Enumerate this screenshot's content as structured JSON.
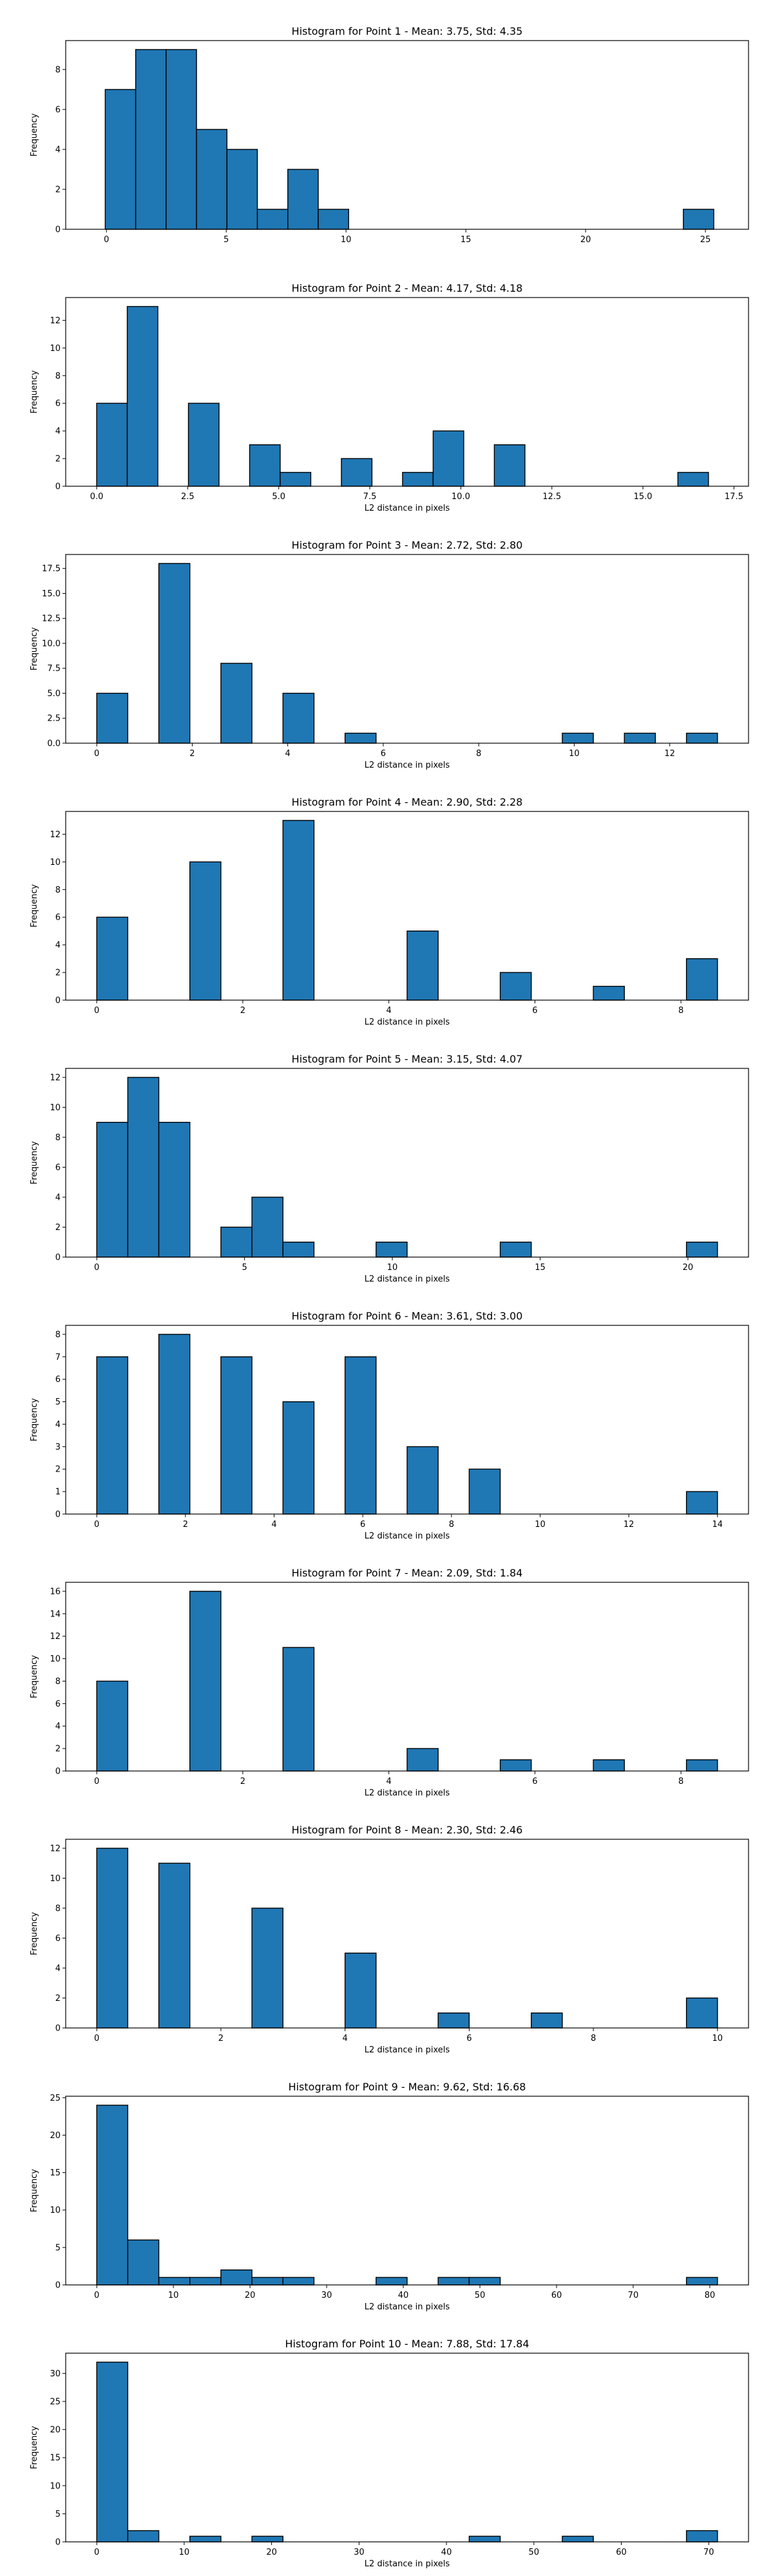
{
  "chart_data": [
    {
      "type": "bar",
      "title": "Histogram for Point 1 - Mean: 3.75, Std: 4.35",
      "xlabel": "",
      "ylabel": "Frequency",
      "xlim": [
        -1.7,
        26.8
      ],
      "ylim": [
        0,
        9.45
      ],
      "xticks": [
        0,
        5,
        10,
        15,
        20,
        25
      ],
      "xtick_labels": [
        "0",
        "5",
        "10",
        "15",
        "20",
        "25"
      ],
      "yticks": [
        0,
        2,
        4,
        6,
        8
      ],
      "ytick_labels": [
        "0",
        "2",
        "4",
        "6",
        "8"
      ],
      "bin_edges": [
        -0.05,
        1.22,
        2.49,
        3.76,
        5.03,
        6.3,
        7.57,
        8.84,
        10.11,
        11.38,
        12.65,
        13.92,
        15.19,
        16.46,
        17.73,
        19.0,
        20.27,
        21.54,
        22.81,
        24.08,
        25.35
      ],
      "counts": [
        7,
        9,
        9,
        5,
        4,
        1,
        3,
        1,
        0,
        0,
        0,
        0,
        0,
        0,
        0,
        0,
        0,
        0,
        0,
        1
      ],
      "grid": false
    },
    {
      "type": "bar",
      "title": "Histogram for Point 2 - Mean: 4.17, Std: 4.18",
      "xlabel": "L2 distance in pixels",
      "ylabel": "Frequency",
      "xlim": [
        -0.85,
        17.9
      ],
      "ylim": [
        0,
        13.65
      ],
      "xticks": [
        0,
        2.5,
        5,
        7.5,
        10,
        12.5,
        15,
        17.5
      ],
      "xtick_labels": [
        "0.0",
        "2.5",
        "5.0",
        "7.5",
        "10.0",
        "12.5",
        "15.0",
        "17.5"
      ],
      "yticks": [
        0,
        2,
        4,
        6,
        8,
        10,
        12
      ],
      "ytick_labels": [
        "0",
        "2",
        "4",
        "6",
        "8",
        "10",
        "12"
      ],
      "bin_edges": [
        0.0,
        0.84,
        1.68,
        2.52,
        3.36,
        4.2,
        5.04,
        5.88,
        6.72,
        7.56,
        8.4,
        9.24,
        10.08,
        10.92,
        11.76,
        12.6,
        13.44,
        14.28,
        15.12,
        15.96,
        16.8
      ],
      "counts": [
        6,
        13,
        0,
        6,
        0,
        3,
        1,
        0,
        2,
        0,
        1,
        4,
        0,
        3,
        0,
        0,
        0,
        0,
        0,
        1
      ],
      "grid": false
    },
    {
      "type": "bar",
      "title": "Histogram for Point 3 - Mean: 2.72, Std: 2.80",
      "xlabel": "L2 distance in pixels",
      "ylabel": "Frequency",
      "xlim": [
        -0.65,
        13.65
      ],
      "ylim": [
        0,
        18.9
      ],
      "xticks": [
        0,
        2,
        4,
        6,
        8,
        10,
        12
      ],
      "xtick_labels": [
        "0",
        "2",
        "4",
        "6",
        "8",
        "10",
        "12"
      ],
      "yticks": [
        0,
        2.5,
        5,
        7.5,
        10,
        12.5,
        15,
        17.5
      ],
      "ytick_labels": [
        "0.0",
        "2.5",
        "5.0",
        "7.5",
        "10.0",
        "12.5",
        "15.0",
        "17.5"
      ],
      "bin_edges": [
        0.0,
        0.65,
        1.3,
        1.95,
        2.6,
        3.25,
        3.9,
        4.55,
        5.2,
        5.85,
        6.5,
        7.15,
        7.8,
        8.45,
        9.1,
        9.75,
        10.4,
        11.05,
        11.7,
        12.35,
        13.0
      ],
      "counts": [
        5,
        0,
        18,
        0,
        8,
        0,
        5,
        0,
        1,
        0,
        0,
        0,
        0,
        0,
        0,
        1,
        0,
        1,
        0,
        1
      ],
      "grid": false
    },
    {
      "type": "bar",
      "title": "Histogram for Point 4 - Mean: 2.90, Std: 2.28",
      "xlabel": "L2 distance in pixels",
      "ylabel": "Frequency",
      "xlim": [
        -0.425,
        8.925
      ],
      "ylim": [
        0,
        13.65
      ],
      "xticks": [
        0,
        2,
        4,
        6,
        8
      ],
      "xtick_labels": [
        "0",
        "2",
        "4",
        "6",
        "8"
      ],
      "yticks": [
        0,
        2,
        4,
        6,
        8,
        10,
        12
      ],
      "ytick_labels": [
        "0",
        "2",
        "4",
        "6",
        "8",
        "10",
        "12"
      ],
      "bin_edges": [
        0.0,
        0.425,
        0.85,
        1.275,
        1.7,
        2.125,
        2.55,
        2.975,
        3.4,
        3.825,
        4.25,
        4.675,
        5.1,
        5.525,
        5.95,
        6.375,
        6.8,
        7.225,
        7.65,
        8.075,
        8.5
      ],
      "counts": [
        6,
        0,
        0,
        10,
        0,
        0,
        13,
        0,
        0,
        0,
        5,
        0,
        0,
        2,
        0,
        0,
        1,
        0,
        0,
        3
      ],
      "grid": false
    },
    {
      "type": "bar",
      "title": "Histogram for Point 5 - Mean: 3.15, Std: 4.07",
      "xlabel": "L2 distance in pixels",
      "ylabel": "Frequency",
      "xlim": [
        -1.05,
        22.05
      ],
      "ylim": [
        0,
        12.6
      ],
      "xticks": [
        0,
        5,
        10,
        15,
        20
      ],
      "xtick_labels": [
        "0",
        "5",
        "10",
        "15",
        "20"
      ],
      "yticks": [
        0,
        2,
        4,
        6,
        8,
        10,
        12
      ],
      "ytick_labels": [
        "0",
        "2",
        "4",
        "6",
        "8",
        "10",
        "12"
      ],
      "bin_edges": [
        0.0,
        1.05,
        2.1,
        3.15,
        4.2,
        5.25,
        6.3,
        7.35,
        8.4,
        9.45,
        10.5,
        11.55,
        12.6,
        13.65,
        14.7,
        15.75,
        16.8,
        17.85,
        18.9,
        19.95,
        21.0
      ],
      "counts": [
        9,
        12,
        9,
        0,
        2,
        4,
        1,
        0,
        0,
        1,
        0,
        0,
        0,
        1,
        0,
        0,
        0,
        0,
        0,
        1
      ],
      "grid": false
    },
    {
      "type": "bar",
      "title": "Histogram for Point 6 - Mean: 3.61, Std: 3.00",
      "xlabel": "L2 distance in pixels",
      "ylabel": "Frequency",
      "xlim": [
        -0.7,
        14.7
      ],
      "ylim": [
        0,
        8.4
      ],
      "xticks": [
        0,
        2,
        4,
        6,
        8,
        10,
        12,
        14
      ],
      "xtick_labels": [
        "0",
        "2",
        "4",
        "6",
        "8",
        "10",
        "12",
        "14"
      ],
      "yticks": [
        0,
        1,
        2,
        3,
        4,
        5,
        6,
        7,
        8
      ],
      "ytick_labels": [
        "0",
        "1",
        "2",
        "3",
        "4",
        "5",
        "6",
        "7",
        "8"
      ],
      "bin_edges": [
        0.0,
        0.7,
        1.4,
        2.1,
        2.8,
        3.5,
        4.2,
        4.9,
        5.6,
        6.3,
        7.0,
        7.7,
        8.4,
        9.1,
        9.8,
        10.5,
        11.2,
        11.9,
        12.6,
        13.3,
        14.0
      ],
      "counts": [
        7,
        0,
        8,
        0,
        7,
        0,
        5,
        0,
        7,
        0,
        3,
        0,
        2,
        0,
        0,
        0,
        0,
        0,
        0,
        1
      ],
      "grid": false
    },
    {
      "type": "bar",
      "title": "Histogram for Point 7 - Mean: 2.09, Std: 1.84",
      "xlabel": "L2 distance in pixels",
      "ylabel": "Frequency",
      "xlim": [
        -0.425,
        8.925
      ],
      "ylim": [
        0,
        16.8
      ],
      "xticks": [
        0,
        2,
        4,
        6,
        8
      ],
      "xtick_labels": [
        "0",
        "2",
        "4",
        "6",
        "8"
      ],
      "yticks": [
        0,
        2,
        4,
        6,
        8,
        10,
        12,
        14,
        16
      ],
      "ytick_labels": [
        "0",
        "2",
        "4",
        "6",
        "8",
        "10",
        "12",
        "14",
        "16"
      ],
      "bin_edges": [
        0.0,
        0.425,
        0.85,
        1.275,
        1.7,
        2.125,
        2.55,
        2.975,
        3.4,
        3.825,
        4.25,
        4.675,
        5.1,
        5.525,
        5.95,
        6.375,
        6.8,
        7.225,
        7.65,
        8.075,
        8.5
      ],
      "counts": [
        8,
        0,
        0,
        16,
        0,
        0,
        11,
        0,
        0,
        0,
        2,
        0,
        0,
        1,
        0,
        0,
        1,
        0,
        0,
        1
      ],
      "grid": false
    },
    {
      "type": "bar",
      "title": "Histogram for Point 8 - Mean: 2.30, Std: 2.46",
      "xlabel": "L2 distance in pixels",
      "ylabel": "Frequency",
      "xlim": [
        -0.5,
        10.5
      ],
      "ylim": [
        0,
        12.6
      ],
      "xticks": [
        0,
        2,
        4,
        6,
        8,
        10
      ],
      "xtick_labels": [
        "0",
        "2",
        "4",
        "6",
        "8",
        "10"
      ],
      "yticks": [
        0,
        2,
        4,
        6,
        8,
        10,
        12
      ],
      "ytick_labels": [
        "0",
        "2",
        "4",
        "6",
        "8",
        "10",
        "12"
      ],
      "bin_edges": [
        0.0,
        0.5,
        1.0,
        1.5,
        2.0,
        2.5,
        3.0,
        3.5,
        4.0,
        4.5,
        5.0,
        5.5,
        6.0,
        6.5,
        7.0,
        7.5,
        8.0,
        8.5,
        9.0,
        9.5,
        10.0
      ],
      "counts": [
        12,
        0,
        11,
        0,
        0,
        8,
        0,
        0,
        5,
        0,
        0,
        1,
        0,
        0,
        1,
        0,
        0,
        0,
        0,
        2
      ],
      "grid": false
    },
    {
      "type": "bar",
      "title": "Histogram for Point 9 - Mean: 9.62, Std: 16.68",
      "xlabel": "L2 distance in pixels",
      "ylabel": "Frequency",
      "xlim": [
        -4.05,
        85.05
      ],
      "ylim": [
        0,
        25.2
      ],
      "xticks": [
        0,
        10,
        20,
        30,
        40,
        50,
        60,
        70,
        80
      ],
      "xtick_labels": [
        "0",
        "10",
        "20",
        "30",
        "40",
        "50",
        "60",
        "70",
        "80"
      ],
      "yticks": [
        0,
        5,
        10,
        15,
        20,
        25
      ],
      "ytick_labels": [
        "0",
        "5",
        "10",
        "15",
        "20",
        "25"
      ],
      "bin_edges": [
        0.0,
        4.05,
        8.1,
        12.15,
        16.2,
        20.25,
        24.3,
        28.35,
        32.4,
        36.45,
        40.5,
        44.55,
        48.6,
        52.65,
        56.7,
        60.75,
        64.8,
        68.85,
        72.9,
        76.95,
        81.0
      ],
      "counts": [
        24,
        6,
        1,
        1,
        2,
        1,
        1,
        0,
        0,
        1,
        0,
        1,
        1,
        0,
        0,
        0,
        0,
        0,
        0,
        1
      ],
      "grid": false
    },
    {
      "type": "bar",
      "title": "Histogram for Point 10 - Mean: 7.88, Std: 17.84",
      "xlabel": "L2 distance in pixels",
      "ylabel": "Frequency",
      "xlim": [
        -3.55,
        74.55
      ],
      "ylim": [
        0,
        33.6
      ],
      "xticks": [
        0,
        10,
        20,
        30,
        40,
        50,
        60,
        70
      ],
      "xtick_labels": [
        "0",
        "10",
        "20",
        "30",
        "40",
        "50",
        "60",
        "70"
      ],
      "yticks": [
        0,
        5,
        10,
        15,
        20,
        25,
        30
      ],
      "ytick_labels": [
        "0",
        "5",
        "10",
        "15",
        "20",
        "25",
        "30"
      ],
      "bin_edges": [
        0.0,
        3.55,
        7.1,
        10.65,
        14.2,
        17.75,
        21.3,
        24.85,
        28.4,
        31.95,
        35.5,
        39.05,
        42.6,
        46.15,
        49.7,
        53.25,
        56.8,
        60.35,
        63.9,
        67.45,
        71.0
      ],
      "counts": [
        32,
        2,
        0,
        1,
        0,
        1,
        0,
        0,
        0,
        0,
        0,
        0,
        1,
        0,
        0,
        1,
        0,
        0,
        0,
        2
      ],
      "grid": false
    }
  ],
  "colors": {
    "bar_fill": "#1f77b4",
    "bar_edge": "#000000",
    "axis": "#000000",
    "text": "#000000"
  }
}
